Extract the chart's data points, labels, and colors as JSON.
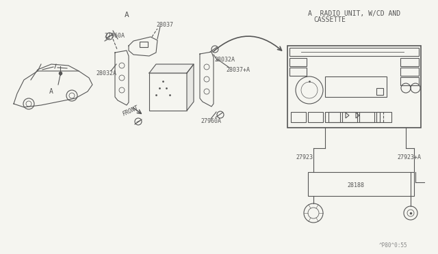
{
  "bg_color": "#f5f5f0",
  "line_color": "#555555",
  "title_label_a": "A",
  "title_label_radio": "A  RADIO UNIT, W/CD AND\n        CASSETTE",
  "label_a_car": "A",
  "label_front": "FRONT",
  "parts": {
    "27960A_top": "27960A",
    "27960A_bot": "27960A",
    "28037": "28037",
    "28037_plus_a": "28037+A",
    "28032A_left": "28032A",
    "28032A_right": "28032A",
    "27923": "27923",
    "27923_plus_a": "27923+A",
    "28188": "28188"
  },
  "watermark": "^P80^0:55"
}
